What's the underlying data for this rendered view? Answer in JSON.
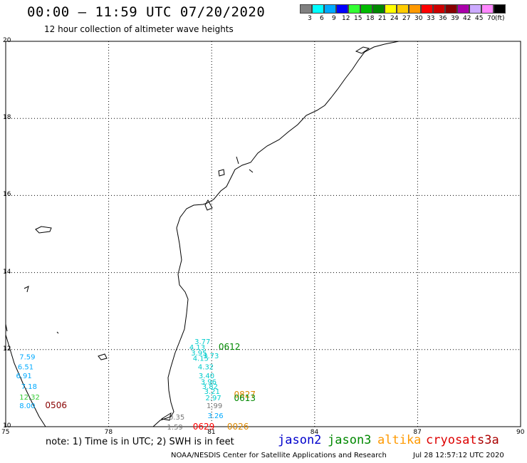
{
  "title": "00:00 – 11:59 UTC 07/20/2020",
  "subtitle": "12 hour collection of altimeter wave heights",
  "color_scale": {
    "colors": [
      "#808080",
      "#00ffff",
      "#00aaff",
      "#0000ff",
      "#33ff33",
      "#00bb00",
      "#008800",
      "#ffff00",
      "#ffcc00",
      "#ff9900",
      "#ff0000",
      "#cc0000",
      "#880000",
      "#aa00aa",
      "#ccaaff",
      "#ff88ff",
      "#000000"
    ],
    "labels": [
      "3",
      "6",
      "9",
      "12",
      "15",
      "18",
      "21",
      "24",
      "27",
      "30",
      "33",
      "36",
      "39",
      "42",
      "45",
      "70",
      "(ft)"
    ]
  },
  "axes": {
    "lat_labels": [
      "20",
      "18",
      "16",
      "14",
      "12",
      "10"
    ],
    "lon_labels": [
      "75",
      "78",
      "81",
      "84",
      "87",
      "90"
    ]
  },
  "observations": [
    {
      "text": "3.77",
      "lon": 80.5,
      "lat": 12.22,
      "color": "#00cccc"
    },
    {
      "text": "4.13",
      "lon": 80.35,
      "lat": 12.07,
      "color": "#00cccc"
    },
    {
      "text": "0612",
      "lon": 81.2,
      "lat": 12.07,
      "color": "#008800",
      "big": true
    },
    {
      "text": "3.95",
      "lon": 80.4,
      "lat": 11.92,
      "color": "#00cccc"
    },
    {
      "text": "3.73",
      "lon": 80.75,
      "lat": 11.85,
      "color": "#00cccc"
    },
    {
      "text": "4.15",
      "lon": 80.45,
      "lat": 11.78,
      "color": "#00cccc"
    },
    {
      "text": "4.32",
      "lon": 80.6,
      "lat": 11.56,
      "color": "#00cccc"
    },
    {
      "text": "3.40",
      "lon": 80.62,
      "lat": 11.33,
      "color": "#00cccc"
    },
    {
      "text": "3.96",
      "lon": 80.68,
      "lat": 11.17,
      "color": "#00cccc"
    },
    {
      "text": "3.82",
      "lon": 80.72,
      "lat": 11.05,
      "color": "#00cccc"
    },
    {
      "text": "3.21",
      "lon": 80.78,
      "lat": 10.92,
      "color": "#00cccc"
    },
    {
      "text": "2.97",
      "lon": 80.82,
      "lat": 10.76,
      "color": "#00cccc"
    },
    {
      "text": "0827",
      "lon": 81.65,
      "lat": 10.83,
      "color": "#dd8800",
      "big": true
    },
    {
      "text": "0613",
      "lon": 81.65,
      "lat": 10.74,
      "color": "#008800",
      "big": true
    },
    {
      "text": "1.99",
      "lon": 80.85,
      "lat": 10.55,
      "color": "#777777"
    },
    {
      "text": "3.26",
      "lon": 80.88,
      "lat": 10.3,
      "color": "#00aaff"
    },
    {
      "text": "0.35",
      "lon": 79.75,
      "lat": 10.26,
      "color": "#777777"
    },
    {
      "text": "1.59",
      "lon": 79.7,
      "lat": 10.0,
      "color": "#777777"
    },
    {
      "text": "0629",
      "lon": 80.45,
      "lat": 10.0,
      "color": "#ff0000",
      "big": true
    },
    {
      "text": "0026",
      "lon": 81.45,
      "lat": 10.0,
      "color": "#dd8800",
      "big": true
    },
    {
      "text": "7.59",
      "lon": 75.4,
      "lat": 11.82,
      "color": "#00aaff"
    },
    {
      "text": "6.51",
      "lon": 75.35,
      "lat": 11.56,
      "color": "#00aaff"
    },
    {
      "text": "6.91",
      "lon": 75.3,
      "lat": 11.33,
      "color": "#00aaff"
    },
    {
      "text": "7.18",
      "lon": 75.45,
      "lat": 11.05,
      "color": "#00aaff"
    },
    {
      "text": "12.32",
      "lon": 75.4,
      "lat": 10.78,
      "color": "#33cc33"
    },
    {
      "text": "8.00",
      "lon": 75.4,
      "lat": 10.55,
      "color": "#00aaff"
    },
    {
      "text": "0506",
      "lon": 76.15,
      "lat": 10.55,
      "color": "#880000",
      "big": true
    }
  ],
  "note": "note: 1) Time is in UTC; 2) SWH is in feet",
  "satellites": [
    {
      "name": "jason2",
      "color": "#0000cc"
    },
    {
      "name": "jason3",
      "color": "#008800"
    },
    {
      "name": "altika",
      "color": "#ff9900"
    },
    {
      "name": "cryosat",
      "color": "#dd0000"
    },
    {
      "name": "s3a",
      "color": "#aa0000"
    }
  ],
  "footer_left": "NOAA/NESDIS Center for Satellite Applications and Research",
  "footer_right": "Jul 28 12:57:12 UTC 2020"
}
